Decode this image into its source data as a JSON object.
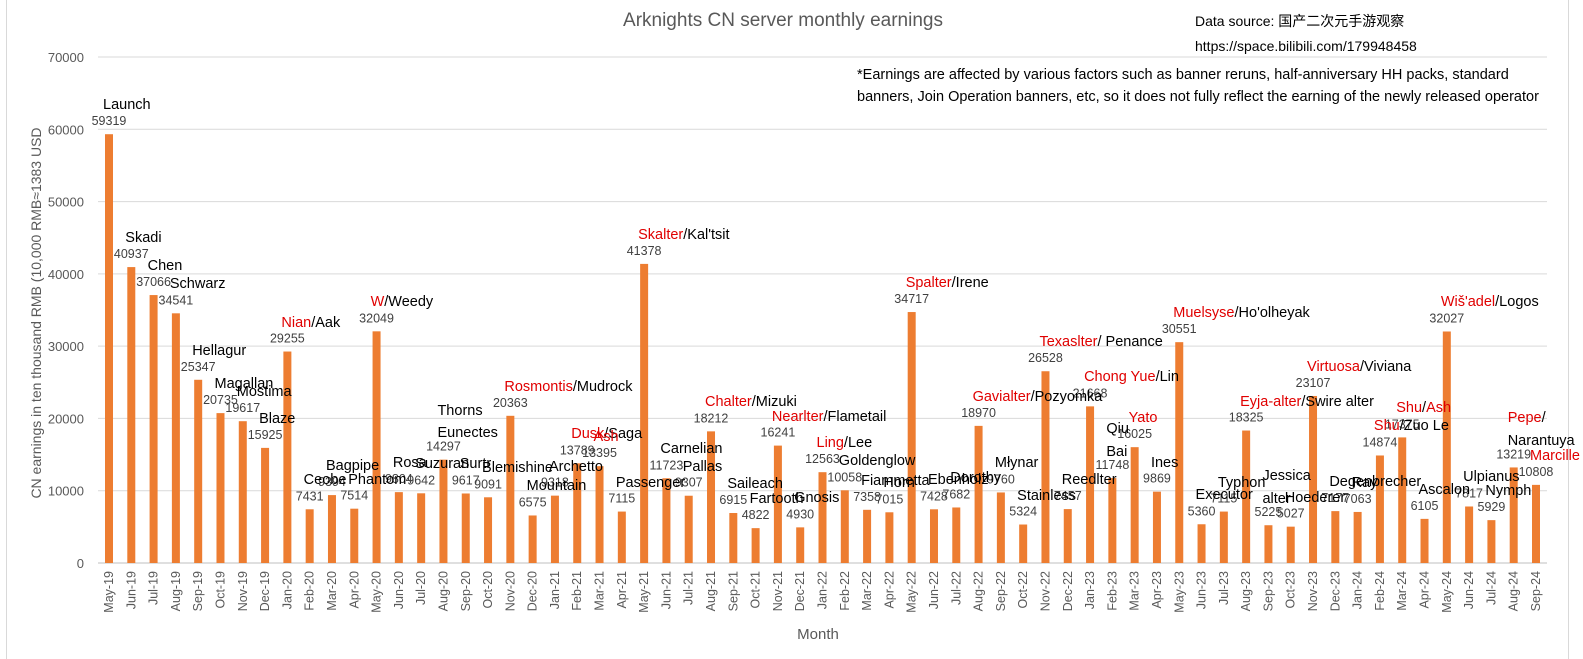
{
  "chart_data": {
    "type": "bar",
    "title": "Arknights CN server monthly earnings",
    "xlabel": "Month",
    "ylabel": "CN earnings in ten thousand RMB (10,000 RMB≈1383 USD",
    "ylim": [
      0,
      70000
    ],
    "yticks": [
      0,
      10000,
      20000,
      30000,
      40000,
      50000,
      60000,
      70000
    ],
    "grid": true,
    "bar_color": "#ED7D31",
    "highlight_color": "#E00000",
    "categories": [
      "May-19",
      "Jun-19",
      "Jul-19",
      "Aug-19",
      "Sep-19",
      "Oct-19",
      "Nov-19",
      "Dec-19",
      "Jan-20",
      "Feb-20",
      "Mar-20",
      "Apr-20",
      "May-20",
      "Jun-20",
      "Jul-20",
      "Aug-20",
      "Sep-20",
      "Oct-20",
      "Nov-20",
      "Dec-20",
      "Jan-21",
      "Feb-21",
      "Mar-21",
      "Apr-21",
      "May-21",
      "Jun-21",
      "Jul-21",
      "Aug-21",
      "Sep-21",
      "Oct-21",
      "Nov-21",
      "Dec-21",
      "Jan-22",
      "Feb-22",
      "Mar-22",
      "Apr-22",
      "May-22",
      "Jun-22",
      "Jul-22",
      "Aug-22",
      "Sep-22",
      "Oct-22",
      "Nov-22",
      "Dec-22",
      "Jan-23",
      "Feb-23",
      "Mar-23",
      "Apr-23",
      "May-23",
      "Jun-23",
      "Jul-23",
      "Aug-23",
      "Sep-23",
      "Oct-23",
      "Nov-23",
      "Dec-23",
      "Jan-24",
      "Feb-24",
      "Mar-24",
      "Apr-24",
      "May-24",
      "Jun-24",
      "Jul-24",
      "Aug-24",
      "Sep-24"
    ],
    "values": [
      59319,
      40937,
      37066,
      34541,
      25347,
      20735,
      19617,
      15925,
      29255,
      7431,
      9394,
      7514,
      32049,
      9804,
      9642,
      14297,
      9617,
      9091,
      20363,
      6575,
      9318,
      13789,
      13395,
      7115,
      41378,
      11723,
      9307,
      18212,
      6915,
      4822,
      16241,
      4930,
      12563,
      10058,
      7358,
      7015,
      34717,
      7428,
      7682,
      18970,
      9760,
      5324,
      26528,
      7457,
      21668,
      11748,
      16025,
      9869,
      30551,
      5360,
      7115,
      18325,
      5225,
      5027,
      23107,
      7177,
      7063,
      14874,
      17375,
      6105,
      32027,
      7817,
      5929,
      13219,
      10808
    ],
    "annotations": [
      {
        "month": "May-19",
        "parts": [
          {
            "text": "Launch",
            "red": false
          }
        ]
      },
      {
        "month": "Jun-19",
        "parts": [
          {
            "text": "Skadi",
            "red": false
          }
        ]
      },
      {
        "month": "Jul-19",
        "parts": [
          {
            "text": "Chen",
            "red": false
          }
        ]
      },
      {
        "month": "Aug-19",
        "parts": [
          {
            "text": "Schwarz",
            "red": false
          }
        ]
      },
      {
        "month": "Sep-19",
        "parts": [
          {
            "text": "Hellagur",
            "red": false
          }
        ]
      },
      {
        "month": "Oct-19",
        "parts": [
          {
            "text": "Magallan",
            "red": false
          }
        ]
      },
      {
        "month": "Nov-19",
        "parts": [
          {
            "text": "Mostima",
            "red": false
          }
        ]
      },
      {
        "month": "Dec-19",
        "parts": [
          {
            "text": "Blaze",
            "red": false
          }
        ]
      },
      {
        "month": "Jan-20",
        "parts": [
          {
            "text": "Nian",
            "red": true
          },
          {
            "text": "/Aak",
            "red": false
          }
        ]
      },
      {
        "month": "Feb-20",
        "parts": [
          {
            "text": "Ceobe",
            "red": false
          }
        ]
      },
      {
        "month": "Mar-20",
        "parts": [
          {
            "text": "Bagpipe",
            "red": false
          }
        ]
      },
      {
        "month": "Apr-20",
        "parts": [
          {
            "text": "Phantom",
            "red": false
          }
        ]
      },
      {
        "month": "May-20",
        "parts": [
          {
            "text": "W",
            "red": true
          },
          {
            "text": "/Weedy",
            "red": false
          }
        ]
      },
      {
        "month": "Jun-20",
        "parts": [
          {
            "text": "Rosa",
            "red": false
          }
        ]
      },
      {
        "month": "Jul-20",
        "parts": [
          {
            "text": "Suzuran",
            "red": false
          }
        ]
      },
      {
        "month": "Aug-20",
        "parts": [
          {
            "text": "Thorns",
            "red": false
          }
        ],
        "extra": "Eunectes"
      },
      {
        "month": "Sep-20",
        "parts": [
          {
            "text": "Surtr",
            "red": false
          }
        ]
      },
      {
        "month": "Oct-20",
        "parts": [
          {
            "text": "Blemishine",
            "red": false
          }
        ]
      },
      {
        "month": "Nov-20",
        "parts": [
          {
            "text": "Rosmontis",
            "red": true
          },
          {
            "text": "/Mudrock",
            "red": false
          }
        ]
      },
      {
        "month": "Dec-20",
        "parts": [
          {
            "text": "Mountain",
            "red": false
          }
        ]
      },
      {
        "month": "Jan-21",
        "parts": [
          {
            "text": "Archetto",
            "red": false
          }
        ]
      },
      {
        "month": "Feb-21",
        "parts": [
          {
            "text": "Dusk",
            "red": true
          },
          {
            "text": "/Saga",
            "red": false
          }
        ]
      },
      {
        "month": "Mar-21",
        "parts": [
          {
            "text": "Ash",
            "red": true
          }
        ]
      },
      {
        "month": "Apr-21",
        "parts": [
          {
            "text": "Passenger",
            "red": false
          }
        ]
      },
      {
        "month": "May-21",
        "parts": [
          {
            "text": "Skalter",
            "red": true
          },
          {
            "text": "/Kal'tsit",
            "red": false
          }
        ]
      },
      {
        "month": "Jun-21",
        "parts": [
          {
            "text": "Carnelian",
            "red": false
          }
        ]
      },
      {
        "month": "Jul-21",
        "parts": [
          {
            "text": "Pallas",
            "red": false
          }
        ]
      },
      {
        "month": "Aug-21",
        "parts": [
          {
            "text": "Chalter",
            "red": true
          },
          {
            "text": "/Mizuki",
            "red": false
          }
        ]
      },
      {
        "month": "Sep-21",
        "parts": [
          {
            "text": "Saileach",
            "red": false
          }
        ]
      },
      {
        "month": "Oct-21",
        "parts": [
          {
            "text": "Fartooth",
            "red": false
          }
        ]
      },
      {
        "month": "Nov-21",
        "parts": [
          {
            "text": "Nearlter",
            "red": true
          },
          {
            "text": "/Flametail",
            "red": false
          }
        ]
      },
      {
        "month": "Dec-21",
        "parts": [
          {
            "text": "Gnosis",
            "red": false
          }
        ]
      },
      {
        "month": "Jan-22",
        "parts": [
          {
            "text": "Ling",
            "red": true
          },
          {
            "text": "/Lee",
            "red": false
          }
        ]
      },
      {
        "month": "Feb-22",
        "parts": [
          {
            "text": "Goldenglow",
            "red": false
          }
        ]
      },
      {
        "month": "Mar-22",
        "parts": [
          {
            "text": "Fiammetta",
            "red": false
          }
        ]
      },
      {
        "month": "Apr-22",
        "parts": [
          {
            "text": "Horn",
            "red": false
          }
        ]
      },
      {
        "month": "May-22",
        "parts": [
          {
            "text": "Spalter",
            "red": true
          },
          {
            "text": "/Irene",
            "red": false
          }
        ]
      },
      {
        "month": "Jun-22",
        "parts": [
          {
            "text": "Ebenholz",
            "red": false
          }
        ]
      },
      {
        "month": "Jul-22",
        "parts": [
          {
            "text": "Dorothy",
            "red": false
          }
        ]
      },
      {
        "month": "Aug-22",
        "parts": [
          {
            "text": "Gavialter",
            "red": true
          },
          {
            "text": "/Pozyomka",
            "red": false
          }
        ]
      },
      {
        "month": "Sep-22",
        "parts": [
          {
            "text": "Młynar",
            "red": false
          }
        ]
      },
      {
        "month": "Oct-22",
        "parts": [
          {
            "text": "Stainless",
            "red": false
          }
        ]
      },
      {
        "month": "Nov-22",
        "parts": [
          {
            "text": "Texaslter",
            "red": true
          },
          {
            "text": "/ Penance",
            "red": false
          }
        ]
      },
      {
        "month": "Dec-22",
        "parts": [
          {
            "text": "Reedlter",
            "red": false
          }
        ]
      },
      {
        "month": "Jan-23",
        "parts": [
          {
            "text": "Chong Yue",
            "red": true
          },
          {
            "text": "/Lin",
            "red": false
          }
        ]
      },
      {
        "month": "Feb-23",
        "parts": [
          {
            "text": "Qiu",
            "red": false
          }
        ],
        "extra": "Bai"
      },
      {
        "month": "Mar-23",
        "parts": [
          {
            "text": "Yato",
            "red": true
          }
        ]
      },
      {
        "month": "Apr-23",
        "parts": [
          {
            "text": "Ines",
            "red": false
          }
        ]
      },
      {
        "month": "May-23",
        "parts": [
          {
            "text": "Muelsyse",
            "red": true
          },
          {
            "text": "/Ho'olheyak",
            "red": false
          }
        ]
      },
      {
        "month": "Jun-23",
        "parts": [
          {
            "text": "Executor",
            "red": false
          }
        ]
      },
      {
        "month": "Jul-23",
        "parts": [
          {
            "text": "Typhon",
            "red": false
          }
        ]
      },
      {
        "month": "Aug-23",
        "parts": [
          {
            "text": "Eyja-alter",
            "red": true
          },
          {
            "text": "/Swire alter",
            "red": false
          }
        ]
      },
      {
        "month": "Sep-23",
        "parts": [
          {
            "text": "Jessica",
            "red": false
          }
        ],
        "extra": "alter"
      },
      {
        "month": "Oct-23",
        "parts": [
          {
            "text": "Hoederer",
            "red": false
          }
        ]
      },
      {
        "month": "Nov-23",
        "parts": [
          {
            "text": "Virtuosa",
            "red": true
          },
          {
            "text": "/Viviana",
            "red": false
          }
        ]
      },
      {
        "month": "Dec-23",
        "parts": [
          {
            "text": "Degenbrecher",
            "red": false
          }
        ]
      },
      {
        "month": "Jan-24",
        "parts": [
          {
            "text": "Ray",
            "red": false
          }
        ]
      },
      {
        "month": "Feb-24",
        "parts": [
          {
            "text": "Shu",
            "red": true
          },
          {
            "text": "/Zuo Le",
            "red": false
          }
        ]
      },
      {
        "month": "Mar-24",
        "parts": [
          {
            "text": "Shu",
            "red": true
          },
          {
            "text": "/",
            "red": false
          },
          {
            "text": "Ash",
            "red": true
          }
        ]
      },
      {
        "month": "Apr-24",
        "parts": [
          {
            "text": "Ascalon",
            "red": false
          }
        ]
      },
      {
        "month": "May-24",
        "parts": [
          {
            "text": "Wiš'adel",
            "red": true
          },
          {
            "text": "/Logos",
            "red": false
          }
        ]
      },
      {
        "month": "Jun-24",
        "parts": [
          {
            "text": "Ulpianus",
            "red": false
          }
        ]
      },
      {
        "month": "Jul-24",
        "parts": [
          {
            "text": "Nymph",
            "red": false
          }
        ]
      },
      {
        "month": "Aug-24",
        "parts": [
          {
            "text": "Pepe",
            "red": true
          },
          {
            "text": "/",
            "red": false
          }
        ],
        "extra": "Narantuya"
      },
      {
        "month": "Sep-24",
        "parts": [
          {
            "text": "Marcille",
            "red": true
          }
        ]
      }
    ]
  },
  "source": {
    "line1": "Data source: 国产二次元手游观察",
    "line2": "https://space.bilibili.com/179948458"
  },
  "note": "*Earnings are affected by various factors such as banner reruns, half-anniversary HH packs, standard banners, Join Operation banners, etc, so it does not fully reflect the earning of the newly released operator"
}
